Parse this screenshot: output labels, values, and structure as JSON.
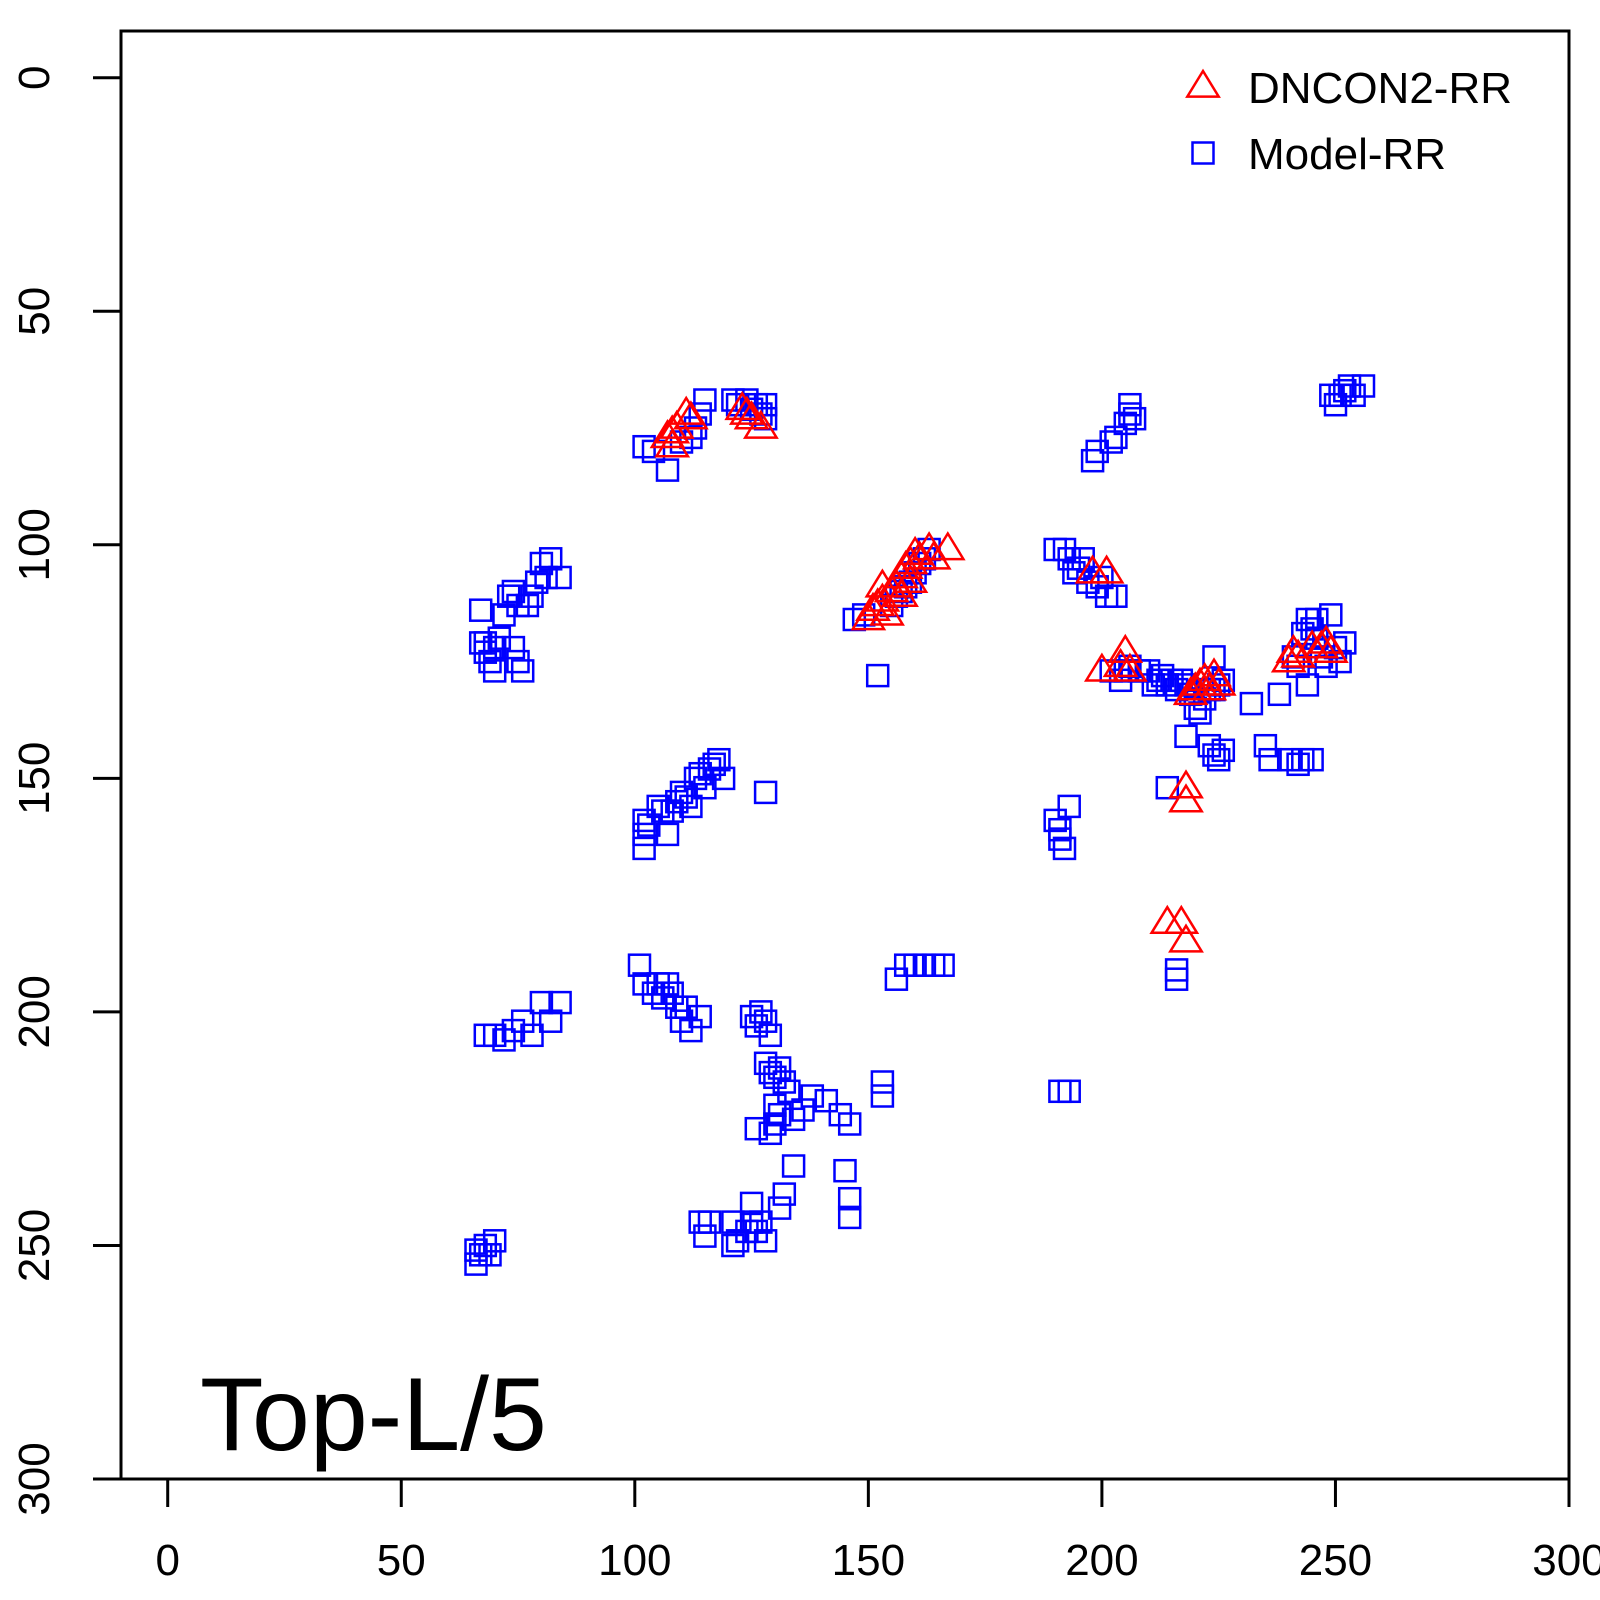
{
  "chart_data": {
    "type": "scatter",
    "title": "",
    "xlabel": "",
    "ylabel": "",
    "annotation": "Top-L/5",
    "xlim": [
      -10,
      300
    ],
    "ylim": [
      300,
      -10
    ],
    "y_reversed": true,
    "xticks": [
      0,
      50,
      100,
      150,
      200,
      250,
      300
    ],
    "yticks": [
      0,
      50,
      100,
      150,
      200,
      250,
      300
    ],
    "grid": false,
    "legend_position": "top-right",
    "series": [
      {
        "name": "DNCON2-RR",
        "marker": "triangle",
        "color": "#ff0000",
        "points": [
          [
            107,
            77
          ],
          [
            108,
            79
          ],
          [
            108,
            76
          ],
          [
            109,
            75
          ],
          [
            111,
            72
          ],
          [
            112,
            73
          ],
          [
            123,
            71
          ],
          [
            124,
            72
          ],
          [
            125,
            73
          ],
          [
            127,
            75
          ],
          [
            150,
            116
          ],
          [
            151,
            114
          ],
          [
            152,
            113
          ],
          [
            153,
            112
          ],
          [
            154,
            115
          ],
          [
            155,
            110
          ],
          [
            156,
            109
          ],
          [
            157,
            107
          ],
          [
            158,
            105
          ],
          [
            159,
            104
          ],
          [
            160,
            102
          ],
          [
            161,
            103
          ],
          [
            163,
            101
          ],
          [
            164,
            103
          ],
          [
            167,
            101
          ],
          [
            153,
            109
          ],
          [
            157,
            111
          ],
          [
            159,
            108
          ],
          [
            198,
            106
          ],
          [
            201,
            106
          ],
          [
            200,
            127
          ],
          [
            204,
            126
          ],
          [
            205,
            123
          ],
          [
            206,
            127
          ],
          [
            218,
            152
          ],
          [
            218,
            155
          ],
          [
            214,
            181
          ],
          [
            217,
            181
          ],
          [
            218,
            185
          ],
          [
            219,
            132
          ],
          [
            220,
            131
          ],
          [
            221,
            130
          ],
          [
            222,
            129
          ],
          [
            223,
            131
          ],
          [
            224,
            128
          ],
          [
            225,
            130
          ],
          [
            240,
            125
          ],
          [
            241,
            123
          ],
          [
            242,
            124
          ],
          [
            245,
            122
          ],
          [
            247,
            122
          ],
          [
            248,
            121
          ],
          [
            249,
            123
          ]
        ]
      },
      {
        "name": "Model-RR",
        "marker": "square",
        "color": "#0000ff",
        "points": [
          [
            102,
            79
          ],
          [
            104,
            80
          ],
          [
            107,
            84
          ],
          [
            110,
            78
          ],
          [
            112,
            77
          ],
          [
            113,
            75
          ],
          [
            114,
            72
          ],
          [
            115,
            69
          ],
          [
            121,
            69
          ],
          [
            122,
            70
          ],
          [
            124,
            69
          ],
          [
            125,
            71
          ],
          [
            126,
            70
          ],
          [
            127,
            72
          ],
          [
            128,
            70
          ],
          [
            128,
            73
          ],
          [
            67,
            114
          ],
          [
            67,
            121
          ],
          [
            68,
            123
          ],
          [
            69,
            125
          ],
          [
            70,
            127
          ],
          [
            71,
            120
          ],
          [
            72,
            115
          ],
          [
            73,
            111
          ],
          [
            74,
            110
          ],
          [
            75,
            125
          ],
          [
            76,
            127
          ],
          [
            74,
            122
          ],
          [
            75,
            113
          ],
          [
            77,
            113
          ],
          [
            78,
            111
          ],
          [
            79,
            108
          ],
          [
            80,
            104
          ],
          [
            81,
            107
          ],
          [
            82,
            103
          ],
          [
            84,
            107
          ],
          [
            70,
            122
          ],
          [
            68,
            121
          ],
          [
            147,
            116
          ],
          [
            149,
            115
          ],
          [
            152,
            128
          ],
          [
            155,
            113
          ],
          [
            156,
            111
          ],
          [
            157,
            110
          ],
          [
            158,
            109
          ],
          [
            159,
            108
          ],
          [
            160,
            106
          ],
          [
            161,
            104
          ],
          [
            162,
            103
          ],
          [
            163,
            101
          ],
          [
            190,
            101
          ],
          [
            192,
            101
          ],
          [
            193,
            103
          ],
          [
            194,
            106
          ],
          [
            195,
            105
          ],
          [
            196,
            103
          ],
          [
            197,
            108
          ],
          [
            199,
            109
          ],
          [
            200,
            107
          ],
          [
            201,
            111
          ],
          [
            203,
            111
          ],
          [
            198,
            82
          ],
          [
            199,
            80
          ],
          [
            202,
            78
          ],
          [
            203,
            77
          ],
          [
            205,
            74
          ],
          [
            206,
            70
          ],
          [
            206,
            72
          ],
          [
            207,
            73
          ],
          [
            249,
            68
          ],
          [
            250,
            70
          ],
          [
            251,
            68
          ],
          [
            252,
            67
          ],
          [
            253,
            66
          ],
          [
            254,
            68
          ],
          [
            256,
            66
          ],
          [
            202,
            127
          ],
          [
            204,
            129
          ],
          [
            205,
            127
          ],
          [
            206,
            126
          ],
          [
            208,
            127
          ],
          [
            210,
            127
          ],
          [
            212,
            129
          ],
          [
            214,
            130
          ],
          [
            216,
            131
          ],
          [
            217,
            129
          ],
          [
            218,
            130
          ],
          [
            219,
            132
          ],
          [
            220,
            135
          ],
          [
            221,
            136
          ],
          [
            222,
            133
          ],
          [
            223,
            131
          ],
          [
            224,
            131
          ],
          [
            225,
            130
          ],
          [
            226,
            129
          ],
          [
            224,
            124
          ],
          [
            211,
            130
          ],
          [
            213,
            128
          ],
          [
            215,
            129
          ],
          [
            218,
            141
          ],
          [
            223,
            143
          ],
          [
            224,
            145
          ],
          [
            225,
            146
          ],
          [
            226,
            144
          ],
          [
            232,
            134
          ],
          [
            235,
            143
          ],
          [
            236,
            146
          ],
          [
            238,
            132
          ],
          [
            240,
            146
          ],
          [
            242,
            147
          ],
          [
            243,
            146
          ],
          [
            245,
            146
          ],
          [
            244,
            130
          ],
          [
            241,
            124
          ],
          [
            242,
            126
          ],
          [
            243,
            119
          ],
          [
            244,
            116
          ],
          [
            245,
            118
          ],
          [
            246,
            120
          ],
          [
            247,
            124
          ],
          [
            248,
            126
          ],
          [
            249,
            115
          ],
          [
            250,
            122
          ],
          [
            251,
            125
          ],
          [
            252,
            121
          ],
          [
            246,
            116
          ],
          [
            102,
            159
          ],
          [
            102,
            162
          ],
          [
            102,
            165
          ],
          [
            103,
            160
          ],
          [
            105,
            156
          ],
          [
            106,
            157
          ],
          [
            107,
            162
          ],
          [
            108,
            157
          ],
          [
            109,
            155
          ],
          [
            110,
            153
          ],
          [
            111,
            154
          ],
          [
            112,
            156
          ],
          [
            113,
            150
          ],
          [
            114,
            149
          ],
          [
            115,
            152
          ],
          [
            116,
            148
          ],
          [
            117,
            147
          ],
          [
            118,
            146
          ],
          [
            119,
            150
          ],
          [
            128,
            153
          ],
          [
            190,
            159
          ],
          [
            191,
            161
          ],
          [
            191,
            163
          ],
          [
            192,
            165
          ],
          [
            193,
            156
          ],
          [
            101,
            190
          ],
          [
            102,
            194
          ],
          [
            104,
            196
          ],
          [
            105,
            194
          ],
          [
            106,
            197
          ],
          [
            107,
            194
          ],
          [
            108,
            196
          ],
          [
            109,
            199
          ],
          [
            110,
            202
          ],
          [
            111,
            199
          ],
          [
            112,
            204
          ],
          [
            114,
            201
          ],
          [
            68,
            205
          ],
          [
            70,
            205
          ],
          [
            72,
            206
          ],
          [
            74,
            204
          ],
          [
            76,
            202
          ],
          [
            78,
            205
          ],
          [
            80,
            198
          ],
          [
            82,
            202
          ],
          [
            84,
            198
          ],
          [
            125,
            201
          ],
          [
            126,
            203
          ],
          [
            127,
            200
          ],
          [
            128,
            202
          ],
          [
            129,
            205
          ],
          [
            128,
            211
          ],
          [
            129,
            213
          ],
          [
            130,
            214
          ],
          [
            131,
            212
          ],
          [
            132,
            215
          ],
          [
            133,
            217
          ],
          [
            130,
            220
          ],
          [
            131,
            222
          ],
          [
            129,
            226
          ],
          [
            130,
            224
          ],
          [
            134,
            223
          ],
          [
            136,
            221
          ],
          [
            138,
            218
          ],
          [
            141,
            219
          ],
          [
            144,
            222
          ],
          [
            146,
            224
          ],
          [
            145,
            234
          ],
          [
            146,
            240
          ],
          [
            146,
            244
          ],
          [
            153,
            215
          ],
          [
            153,
            218
          ],
          [
            134,
            233
          ],
          [
            132,
            239
          ],
          [
            131,
            242
          ],
          [
            126,
            225
          ],
          [
            156,
            193
          ],
          [
            158,
            190
          ],
          [
            160,
            190
          ],
          [
            162,
            190
          ],
          [
            164,
            190
          ],
          [
            166,
            190
          ],
          [
            191,
            217
          ],
          [
            193,
            217
          ],
          [
            216,
            191
          ],
          [
            216,
            193
          ],
          [
            214,
            152
          ],
          [
            114,
            245
          ],
          [
            115,
            248
          ],
          [
            116,
            245
          ],
          [
            121,
            245
          ],
          [
            122,
            249
          ],
          [
            124,
            247
          ],
          [
            125,
            245
          ],
          [
            126,
            247
          ],
          [
            127,
            245
          ],
          [
            128,
            249
          ],
          [
            121,
            250
          ],
          [
            125,
            241
          ],
          [
            66,
            251
          ],
          [
            66,
            254
          ],
          [
            68,
            250
          ],
          [
            69,
            252
          ],
          [
            70,
            249
          ],
          [
            67,
            252
          ]
        ]
      }
    ]
  }
}
